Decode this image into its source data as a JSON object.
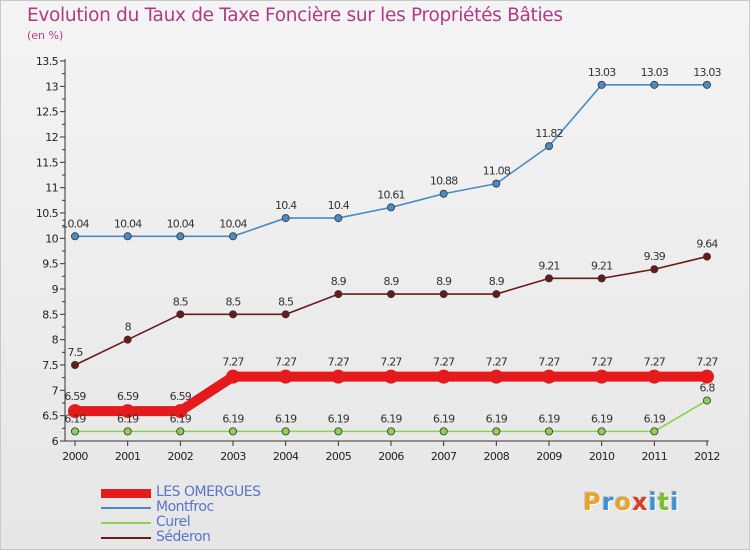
{
  "title": "Evolution du Taux de Taxe Foncière sur les Propriétés Bâties",
  "unit_label": "(en %)",
  "logo": {
    "letters": [
      "P",
      "r",
      "o",
      "x",
      "i",
      "t",
      "i"
    ],
    "colors": [
      "#e8a428",
      "#3c8fd8",
      "#e8a428",
      "#d83c28",
      "#3c8fd8",
      "#7cbf30",
      "#3c8fd8"
    ]
  },
  "chart_data": {
    "type": "line",
    "x": [
      "2000",
      "2001",
      "2002",
      "2003",
      "2004",
      "2005",
      "2006",
      "2007",
      "2008",
      "2009",
      "2010",
      "2011",
      "2012"
    ],
    "y_ticks": [
      "6",
      "6.5",
      "7",
      "7.5",
      "8",
      "8.5",
      "9",
      "9.5",
      "10",
      "10.5",
      "11",
      "11.5",
      "12",
      "12.5",
      "13",
      "13.5"
    ],
    "ylim": [
      6,
      13.5
    ],
    "grid": false,
    "legend_position": "bottom-left",
    "series": [
      {
        "name": "LES OMERGUES",
        "color": "#e41a1c",
        "values": [
          6.59,
          6.59,
          6.59,
          7.27,
          7.27,
          7.27,
          7.27,
          7.27,
          7.27,
          7.27,
          7.27,
          7.27,
          7.27
        ],
        "labels": [
          "6.59",
          "6.59",
          "6.59",
          "7.27",
          "7.27",
          "7.27",
          "7.27",
          "7.27",
          "7.27",
          "7.27",
          "7.27",
          "7.27",
          "7.27"
        ],
        "emphasis": true
      },
      {
        "name": "Montfroc",
        "color": "#4a8bc4",
        "values": [
          10.04,
          10.04,
          10.04,
          10.04,
          10.4,
          10.4,
          10.61,
          10.88,
          11.08,
          11.82,
          13.03,
          13.03,
          13.03
        ],
        "labels": [
          "10.04",
          "10.04",
          "10.04",
          "10.04",
          "10.4",
          "10.4",
          "10.61",
          "10.88",
          "11.08",
          "11.82",
          "13.03",
          "13.03",
          "13.03"
        ],
        "emphasis": false
      },
      {
        "name": "Curel",
        "color": "#8fd052",
        "values": [
          6.19,
          6.19,
          6.19,
          6.19,
          6.19,
          6.19,
          6.19,
          6.19,
          6.19,
          6.19,
          6.19,
          6.19,
          6.8
        ],
        "labels": [
          "6.19",
          "6.19",
          "6.19",
          "6.19",
          "6.19",
          "6.19",
          "6.19",
          "6.19",
          "6.19",
          "6.19",
          "6.19",
          "6.19",
          "6.8"
        ],
        "emphasis": false
      },
      {
        "name": "Séderon",
        "color": "#6b1a1a",
        "values": [
          7.5,
          8,
          8.5,
          8.5,
          8.5,
          8.9,
          8.9,
          8.9,
          8.9,
          9.21,
          9.21,
          9.39,
          9.64
        ],
        "labels": [
          "7.5",
          "8",
          "8.5",
          "8.5",
          "8.5",
          "8.9",
          "8.9",
          "8.9",
          "8.9",
          "9.21",
          "9.21",
          "9.39",
          "9.64"
        ],
        "emphasis": false
      }
    ]
  }
}
